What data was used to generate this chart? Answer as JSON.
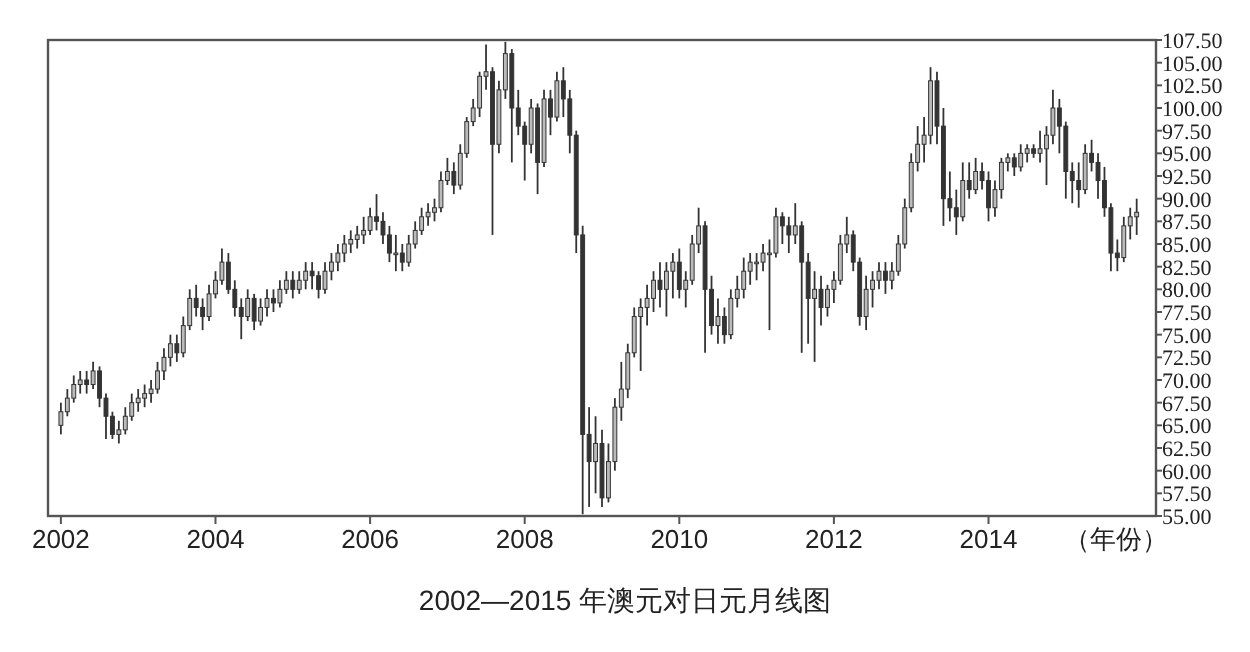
{
  "chart_data": {
    "type": "candlestick",
    "title": "2002—2015 年澳元对日元月线图",
    "xlabel": "（年份）",
    "color": "#333333",
    "xlim": [
      "2001-11",
      "2016-03"
    ],
    "xticks": [
      "2002",
      "2004",
      "2006",
      "2008",
      "2010",
      "2012",
      "2014"
    ],
    "ylim": [
      55,
      107.5
    ],
    "yticks": [
      {
        "value": 55,
        "label": "55.00"
      },
      {
        "value": 57.5,
        "label": "57.50"
      },
      {
        "value": 60,
        "label": "60.00"
      },
      {
        "value": 62.5,
        "label": "62.50"
      },
      {
        "value": 65,
        "label": "65.00"
      },
      {
        "value": 67.5,
        "label": "67.50"
      },
      {
        "value": 70,
        "label": "70.00"
      },
      {
        "value": 72.5,
        "label": "72.50"
      },
      {
        "value": 75,
        "label": "75.00"
      },
      {
        "value": 77.5,
        "label": "77.50"
      },
      {
        "value": 80,
        "label": "80.00"
      },
      {
        "value": 82.5,
        "label": "82.50"
      },
      {
        "value": 85,
        "label": "85.00"
      },
      {
        "value": 87.5,
        "label": "87.50"
      },
      {
        "value": 90,
        "label": "90.00"
      },
      {
        "value": 92.5,
        "label": "92.50"
      },
      {
        "value": 95,
        "label": "95.00"
      },
      {
        "value": 97.5,
        "label": "97.50"
      },
      {
        "value": 100,
        "label": "100.00"
      },
      {
        "value": 102.5,
        "label": "102.50"
      },
      {
        "value": 105,
        "label": "105.00"
      },
      {
        "value": 107.5,
        "label": "107.50"
      }
    ],
    "x": [
      "2002-01",
      "2002-02",
      "2002-03",
      "2002-04",
      "2002-05",
      "2002-06",
      "2002-07",
      "2002-08",
      "2002-09",
      "2002-10",
      "2002-11",
      "2002-12",
      "2003-01",
      "2003-02",
      "2003-03",
      "2003-04",
      "2003-05",
      "2003-06",
      "2003-07",
      "2003-08",
      "2003-09",
      "2003-10",
      "2003-11",
      "2003-12",
      "2004-01",
      "2004-02",
      "2004-03",
      "2004-04",
      "2004-05",
      "2004-06",
      "2004-07",
      "2004-08",
      "2004-09",
      "2004-10",
      "2004-11",
      "2004-12",
      "2005-01",
      "2005-02",
      "2005-03",
      "2005-04",
      "2005-05",
      "2005-06",
      "2005-07",
      "2005-08",
      "2005-09",
      "2005-10",
      "2005-11",
      "2005-12",
      "2006-01",
      "2006-02",
      "2006-03",
      "2006-04",
      "2006-05",
      "2006-06",
      "2006-07",
      "2006-08",
      "2006-09",
      "2006-10",
      "2006-11",
      "2006-12",
      "2007-01",
      "2007-02",
      "2007-03",
      "2007-04",
      "2007-05",
      "2007-06",
      "2007-07",
      "2007-08",
      "2007-09",
      "2007-10",
      "2007-11",
      "2007-12",
      "2008-01",
      "2008-02",
      "2008-03",
      "2008-04",
      "2008-05",
      "2008-06",
      "2008-07",
      "2008-08",
      "2008-09",
      "2008-10",
      "2008-11",
      "2008-12",
      "2009-01",
      "2009-02",
      "2009-03",
      "2009-04",
      "2009-05",
      "2009-06",
      "2009-07",
      "2009-08",
      "2009-09",
      "2009-10",
      "2009-11",
      "2009-12",
      "2010-01",
      "2010-02",
      "2010-03",
      "2010-04",
      "2010-05",
      "2010-06",
      "2010-07",
      "2010-08",
      "2010-09",
      "2010-10",
      "2010-11",
      "2010-12",
      "2011-01",
      "2011-02",
      "2011-03",
      "2011-04",
      "2011-05",
      "2011-06",
      "2011-07",
      "2011-08",
      "2011-09",
      "2011-10",
      "2011-11",
      "2011-12",
      "2012-01",
      "2012-02",
      "2012-03",
      "2012-04",
      "2012-05",
      "2012-06",
      "2012-07",
      "2012-08",
      "2012-09",
      "2012-10",
      "2012-11",
      "2012-12",
      "2013-01",
      "2013-02",
      "2013-03",
      "2013-04",
      "2013-05",
      "2013-06",
      "2013-07",
      "2013-08",
      "2013-09",
      "2013-10",
      "2013-11",
      "2013-12",
      "2014-01",
      "2014-02",
      "2014-03",
      "2014-04",
      "2014-05",
      "2014-06",
      "2014-07",
      "2014-08",
      "2014-09",
      "2014-10",
      "2014-11",
      "2014-12",
      "2015-01",
      "2015-02",
      "2015-03",
      "2015-04",
      "2015-05",
      "2015-06",
      "2015-07",
      "2015-08",
      "2015-09",
      "2015-10",
      "2015-11",
      "2015-12"
    ],
    "ohlc": [
      [
        65,
        67.5,
        64,
        66.5
      ],
      [
        66.5,
        69,
        66,
        68
      ],
      [
        68,
        70.5,
        67.5,
        69.5
      ],
      [
        69.5,
        71,
        68.5,
        70
      ],
      [
        70,
        71,
        68.5,
        69.5
      ],
      [
        69.5,
        72,
        69,
        71
      ],
      [
        71,
        71.5,
        67,
        68
      ],
      [
        68,
        68.5,
        63.5,
        66
      ],
      [
        66,
        66.5,
        63.5,
        64
      ],
      [
        64,
        65.5,
        63,
        64.5
      ],
      [
        64.5,
        67,
        64,
        66
      ],
      [
        66,
        68.5,
        65.5,
        67.5
      ],
      [
        67.5,
        69,
        66.5,
        68
      ],
      [
        68,
        69.5,
        67,
        68.5
      ],
      [
        68.5,
        70,
        67.5,
        69
      ],
      [
        69,
        72,
        68.5,
        71
      ],
      [
        71,
        73.5,
        70,
        72.5
      ],
      [
        72.5,
        75,
        71.5,
        74
      ],
      [
        74,
        75,
        72,
        73
      ],
      [
        73,
        77,
        72.5,
        76
      ],
      [
        76,
        80,
        75.5,
        79
      ],
      [
        79,
        80.5,
        77,
        78
      ],
      [
        78,
        79,
        75.5,
        77
      ],
      [
        77,
        80.5,
        76.5,
        79.5
      ],
      [
        79.5,
        82,
        79,
        81
      ],
      [
        81,
        84.5,
        80.5,
        83
      ],
      [
        83,
        84,
        79.5,
        80
      ],
      [
        80,
        81,
        77,
        78
      ],
      [
        78,
        79,
        74.5,
        77
      ],
      [
        77,
        80,
        76.5,
        79
      ],
      [
        79,
        79.5,
        75.5,
        76.5
      ],
      [
        76.5,
        79,
        76,
        78
      ],
      [
        78,
        80,
        77,
        79
      ],
      [
        79,
        80,
        77.5,
        78.5
      ],
      [
        78.5,
        81,
        78,
        80
      ],
      [
        80,
        82,
        79.5,
        81
      ],
      [
        81,
        82,
        79,
        80
      ],
      [
        80,
        82,
        79.5,
        81
      ],
      [
        81,
        83,
        80,
        82
      ],
      [
        82,
        83,
        80,
        81.5
      ],
      [
        81.5,
        82,
        79,
        80
      ],
      [
        80,
        83,
        79.5,
        82
      ],
      [
        82,
        84,
        81,
        83
      ],
      [
        83,
        85,
        82,
        84
      ],
      [
        84,
        86,
        83,
        85
      ],
      [
        85,
        86.5,
        84,
        85.5
      ],
      [
        85.5,
        87,
        84.5,
        86
      ],
      [
        86,
        88,
        85,
        86.5
      ],
      [
        86.5,
        89,
        86,
        88
      ],
      [
        88,
        90.5,
        86.5,
        87.5
      ],
      [
        87.5,
        88.5,
        85,
        86
      ],
      [
        86,
        87,
        83,
        84
      ],
      [
        84,
        86,
        82,
        84
      ],
      [
        84,
        85,
        82,
        83
      ],
      [
        83,
        86,
        82.5,
        85
      ],
      [
        85,
        87.5,
        84.5,
        86.5
      ],
      [
        86.5,
        89,
        86,
        88
      ],
      [
        88,
        89.5,
        87,
        88.5
      ],
      [
        88.5,
        90,
        87.5,
        89
      ],
      [
        89,
        93,
        88.5,
        92
      ],
      [
        92,
        94.5,
        91.5,
        93
      ],
      [
        93,
        94,
        90.5,
        91.5
      ],
      [
        91.5,
        96,
        91,
        95
      ],
      [
        95,
        99,
        94.5,
        98.5
      ],
      [
        98.5,
        101,
        98,
        100
      ],
      [
        100,
        104,
        99,
        103.5
      ],
      [
        103.5,
        107,
        102,
        104
      ],
      [
        104,
        104.5,
        86,
        96
      ],
      [
        96,
        103,
        95,
        102
      ],
      [
        102,
        107.3,
        101,
        106
      ],
      [
        106,
        106.5,
        94,
        100
      ],
      [
        100,
        102,
        97,
        98
      ],
      [
        98,
        98.5,
        92,
        96
      ],
      [
        96,
        101,
        95,
        100
      ],
      [
        100,
        100.5,
        90.5,
        94
      ],
      [
        94,
        102,
        93.5,
        101
      ],
      [
        101,
        102,
        97,
        99
      ],
      [
        99,
        104,
        98.5,
        103
      ],
      [
        103,
        104.5,
        99,
        101
      ],
      [
        101,
        102,
        95,
        97
      ],
      [
        97,
        97.5,
        84,
        86
      ],
      [
        86,
        87,
        55.2,
        64
      ],
      [
        64,
        67,
        56,
        61
      ],
      [
        61,
        66,
        57.5,
        63
      ],
      [
        63,
        64.5,
        56,
        57
      ],
      [
        57,
        63,
        56.5,
        61
      ],
      [
        61,
        68,
        60,
        67
      ],
      [
        67,
        72,
        65.5,
        69
      ],
      [
        69,
        74,
        68,
        73
      ],
      [
        73,
        78,
        72.5,
        77
      ],
      [
        77,
        79,
        71,
        78
      ],
      [
        78,
        80.5,
        76,
        79
      ],
      [
        79,
        82,
        77.5,
        81
      ],
      [
        81,
        83,
        78,
        80
      ],
      [
        80,
        83,
        77,
        82
      ],
      [
        82,
        84,
        79,
        83
      ],
      [
        83,
        84.5,
        79,
        80
      ],
      [
        80,
        82,
        78,
        81
      ],
      [
        81,
        86,
        80.5,
        85
      ],
      [
        85,
        89,
        84,
        87
      ],
      [
        87,
        87.5,
        73,
        80
      ],
      [
        80,
        81.5,
        75,
        76
      ],
      [
        76,
        79,
        74,
        77
      ],
      [
        77,
        78,
        74,
        75
      ],
      [
        75,
        80,
        74.5,
        79
      ],
      [
        79,
        81.5,
        78,
        80
      ],
      [
        80,
        83.5,
        79,
        82
      ],
      [
        82,
        84,
        80.5,
        83
      ],
      [
        83,
        84,
        81,
        83
      ],
      [
        83,
        85,
        82,
        84
      ],
      [
        84,
        85.5,
        75.5,
        84
      ],
      [
        84,
        89,
        83.5,
        88
      ],
      [
        88,
        88.5,
        85,
        87
      ],
      [
        87,
        88,
        84,
        86
      ],
      [
        86,
        89.5,
        85,
        87
      ],
      [
        87,
        87.5,
        73,
        83
      ],
      [
        83,
        84,
        74,
        79
      ],
      [
        79,
        82,
        72,
        80
      ],
      [
        80,
        81.5,
        76,
        78
      ],
      [
        78,
        80.5,
        77,
        80
      ],
      [
        80,
        82,
        78.5,
        81
      ],
      [
        81,
        86,
        80.5,
        85
      ],
      [
        85,
        88,
        84,
        86
      ],
      [
        86,
        86.5,
        82,
        83
      ],
      [
        83,
        83.5,
        76,
        77
      ],
      [
        77,
        81.5,
        75.5,
        80
      ],
      [
        80,
        82,
        78,
        81
      ],
      [
        81,
        83,
        80,
        82
      ],
      [
        82,
        83,
        79.5,
        81
      ],
      [
        81,
        83,
        80,
        82
      ],
      [
        82,
        86,
        81.5,
        85
      ],
      [
        85,
        90,
        84.5,
        89
      ],
      [
        89,
        95,
        88.5,
        94
      ],
      [
        94,
        98,
        93,
        96
      ],
      [
        96,
        99,
        94,
        97
      ],
      [
        97,
        104.5,
        96,
        103
      ],
      [
        103,
        104,
        96,
        98
      ],
      [
        98,
        100,
        87,
        90
      ],
      [
        90,
        93,
        87.5,
        89
      ],
      [
        89,
        91,
        86,
        88
      ],
      [
        88,
        94,
        87.5,
        92
      ],
      [
        92,
        94,
        90,
        91
      ],
      [
        91,
        94.5,
        90.5,
        93
      ],
      [
        93,
        94,
        91,
        92
      ],
      [
        92,
        93,
        87.5,
        89
      ],
      [
        89,
        92,
        88,
        91
      ],
      [
        91,
        94.5,
        90,
        94
      ],
      [
        94,
        95,
        93,
        94.5
      ],
      [
        94.5,
        95,
        92.5,
        93.5
      ],
      [
        93.5,
        96,
        93,
        95
      ],
      [
        95,
        96,
        94,
        95.5
      ],
      [
        95.5,
        96,
        94.5,
        95
      ],
      [
        95,
        97.5,
        94,
        95.5
      ],
      [
        95.5,
        98,
        91.5,
        97
      ],
      [
        97,
        102,
        96,
        100
      ],
      [
        100,
        101,
        95,
        98
      ],
      [
        98,
        98.5,
        90,
        93
      ],
      [
        93,
        94,
        89.5,
        92
      ],
      [
        92,
        94,
        89,
        91
      ],
      [
        91,
        96,
        90.5,
        95
      ],
      [
        95,
        96.5,
        93,
        94
      ],
      [
        94,
        95,
        90,
        92
      ],
      [
        92,
        93.5,
        88,
        89
      ],
      [
        89,
        89.5,
        82,
        84
      ],
      [
        84,
        85.5,
        82,
        83.5
      ],
      [
        83.5,
        88,
        83,
        87
      ],
      [
        87,
        89,
        85.5,
        88
      ],
      [
        88,
        90,
        86,
        88.5
      ]
    ]
  }
}
